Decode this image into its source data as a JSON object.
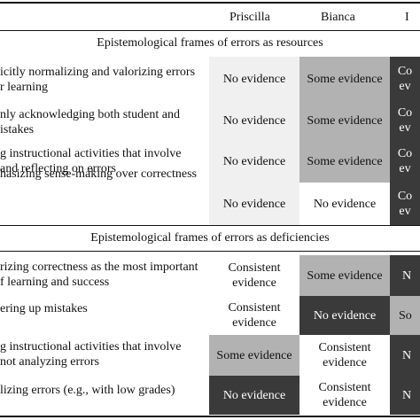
{
  "header": {
    "col1": "Priscilla",
    "col2": "Bianca",
    "col3": "I"
  },
  "sections": {
    "resources": "Epistemological frames of errors as resources",
    "deficiencies": "Epistemological frames of errors as deficiencies"
  },
  "rows": [
    {
      "label_line1": "icitly normalizing and valorizing errors",
      "label_line2": "r learning",
      "priscilla": "No evidence",
      "bianca": "Some evidence",
      "col3_l1": "Co",
      "col3_l2": "ev"
    },
    {
      "label_line1": "nly acknowledging both student and",
      "label_line2": "istakes",
      "priscilla": "No evidence",
      "bianca": "Some evidence",
      "col3_l1": "Co",
      "col3_l2": "ev"
    },
    {
      "label_line1": "g instructional activities that involve",
      "label_line2": "and reflecting on errors",
      "priscilla": "No evidence",
      "bianca": "Some evidence",
      "col3_l1": "Co",
      "col3_l2": "ev"
    },
    {
      "label_line1": "hasizing sense-making over correctness",
      "label_line2": "",
      "priscilla": "No evidence",
      "bianca": "No evidence",
      "col3_l1": "Co",
      "col3_l2": "ev"
    },
    {
      "label_line1": "rizing correctness as the most important",
      "label_line2": "f learning and success",
      "priscilla_l1": "Consistent",
      "priscilla_l2": "evidence",
      "bianca": "Some evidence",
      "col3": "N"
    },
    {
      "label_line1": "ering up mistakes",
      "label_line2": "",
      "priscilla_l1": "Consistent",
      "priscilla_l2": "evidence",
      "bianca": "No evidence",
      "col3": "So"
    },
    {
      "label_line1": "g instructional activities that involve",
      "label_line2": "not analyzing errors",
      "priscilla": "Some evidence",
      "bianca_l1": "Consistent",
      "bianca_l2": "evidence",
      "col3": "N"
    },
    {
      "label_line1": "lizing errors (e.g., with low grades)",
      "label_line2": "",
      "priscilla": "No evidence",
      "bianca_l1": "Consistent",
      "bianca_l2": "evidence",
      "col3": "N"
    }
  ],
  "shade_colors": {
    "light": "#f0f0f0",
    "medium": "#b2b2b2",
    "dark": "#3a3a3a"
  }
}
